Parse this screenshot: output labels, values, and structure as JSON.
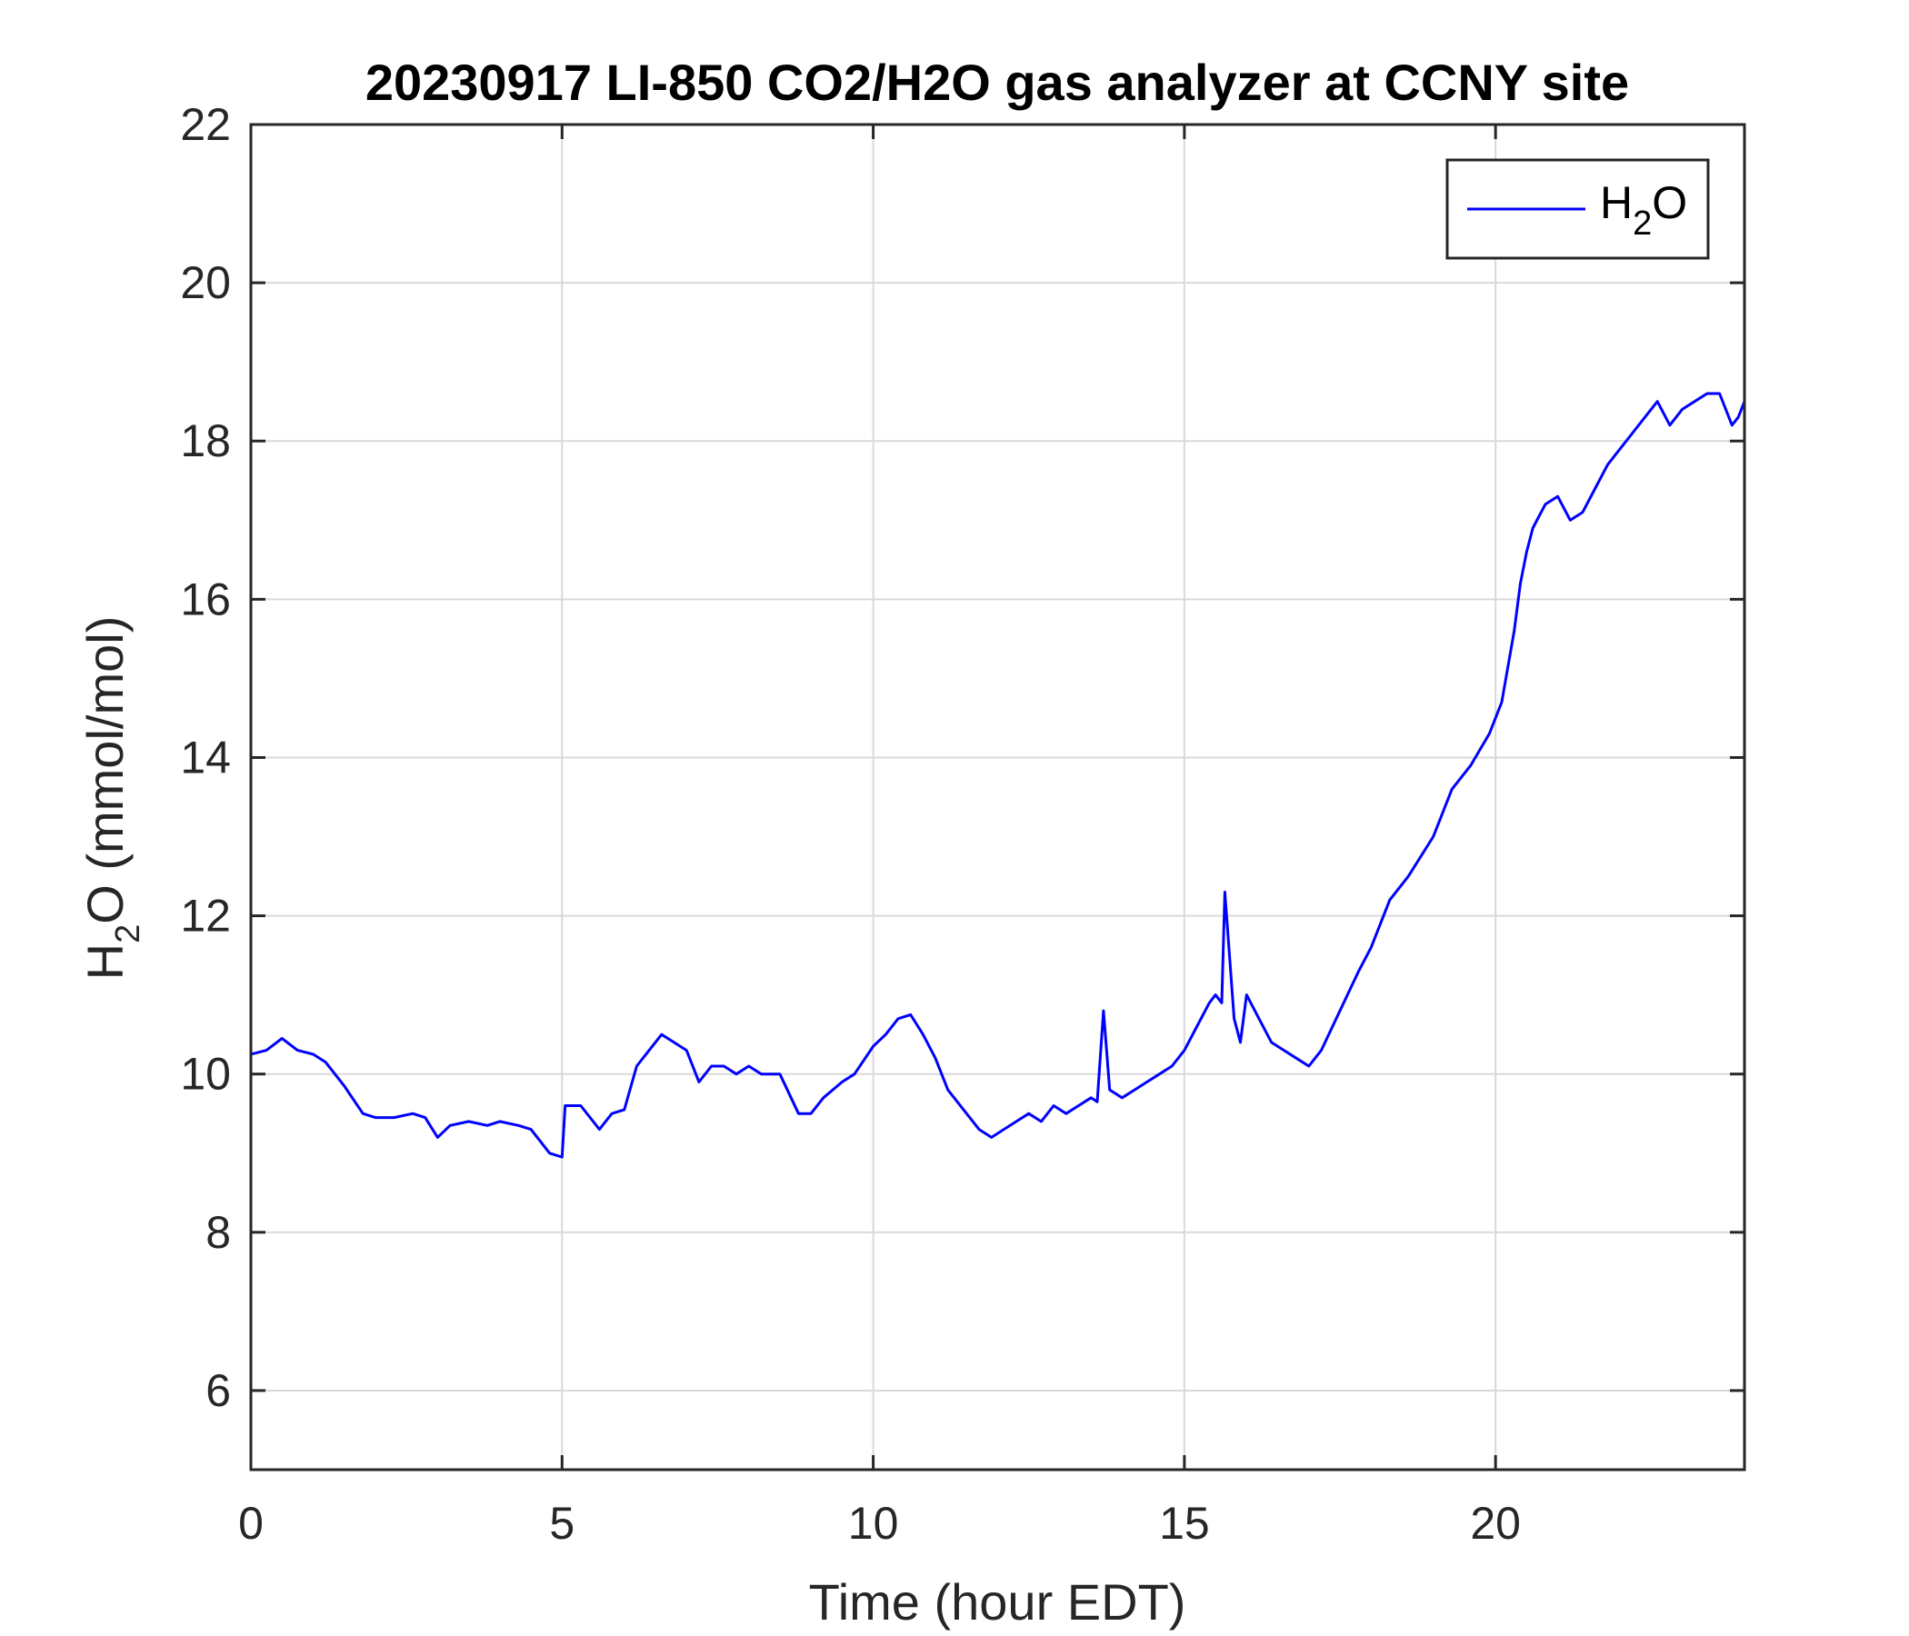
{
  "chart_data": {
    "type": "line",
    "title": "20230917 LI-850 CO2/H2O gas analyzer at CCNY site",
    "xlabel": "Time (hour EDT)",
    "ylabel": {
      "main": "H",
      "sub": "2",
      "rest": "O (mmol/mol)"
    },
    "xlim": [
      0,
      24
    ],
    "ylim": [
      5,
      22
    ],
    "xticks": [
      0,
      5,
      10,
      15,
      20
    ],
    "yticks": [
      6,
      8,
      10,
      12,
      14,
      16,
      18,
      20,
      22
    ],
    "grid": true,
    "legend_position": "top-right",
    "colors": {
      "series": "#0000ff",
      "grid": "#d9d9d9",
      "axis": "#262626"
    },
    "series": [
      {
        "name": {
          "main": "H",
          "sub": "2",
          "rest": "O"
        },
        "x": [
          0,
          0.25,
          0.5,
          0.75,
          1.0,
          1.2,
          1.5,
          1.8,
          2.0,
          2.3,
          2.6,
          2.8,
          3.0,
          3.2,
          3.5,
          3.8,
          4.0,
          4.3,
          4.5,
          4.8,
          5.0,
          5.05,
          5.3,
          5.6,
          5.8,
          6.0,
          6.2,
          6.4,
          6.6,
          6.8,
          7.0,
          7.2,
          7.4,
          7.6,
          7.8,
          8.0,
          8.2,
          8.5,
          8.8,
          9.0,
          9.2,
          9.5,
          9.7,
          10.0,
          10.2,
          10.4,
          10.6,
          10.8,
          11.0,
          11.2,
          11.5,
          11.7,
          11.9,
          12.1,
          12.3,
          12.5,
          12.7,
          12.9,
          13.1,
          13.3,
          13.5,
          13.6,
          13.7,
          13.8,
          14.0,
          14.2,
          14.4,
          14.6,
          14.8,
          15.0,
          15.2,
          15.4,
          15.5,
          15.6,
          15.65,
          15.8,
          15.9,
          16.0,
          16.2,
          16.4,
          16.6,
          16.8,
          17.0,
          17.2,
          17.5,
          17.8,
          18.0,
          18.3,
          18.6,
          19.0,
          19.3,
          19.6,
          19.9,
          20.1,
          20.3,
          20.4,
          20.5,
          20.6,
          20.8,
          21.0,
          21.2,
          21.4,
          21.6,
          21.8,
          22.0,
          22.2,
          22.4,
          22.6,
          22.8,
          23.0,
          23.2,
          23.4,
          23.6,
          23.8,
          23.9,
          24.0
        ],
        "values": [
          10.25,
          10.3,
          10.45,
          10.3,
          10.25,
          10.15,
          9.85,
          9.5,
          9.45,
          9.45,
          9.5,
          9.45,
          9.2,
          9.35,
          9.4,
          9.35,
          9.4,
          9.35,
          9.3,
          9.0,
          8.95,
          9.6,
          9.6,
          9.3,
          9.5,
          9.55,
          10.1,
          10.3,
          10.5,
          10.4,
          10.3,
          9.9,
          10.1,
          10.1,
          10.0,
          10.1,
          10.0,
          10.0,
          9.5,
          9.5,
          9.7,
          9.9,
          10.0,
          10.35,
          10.5,
          10.7,
          10.75,
          10.5,
          10.2,
          9.8,
          9.5,
          9.3,
          9.2,
          9.3,
          9.4,
          9.5,
          9.4,
          9.6,
          9.5,
          9.6,
          9.7,
          9.65,
          10.8,
          9.8,
          9.7,
          9.8,
          9.9,
          10.0,
          10.1,
          10.3,
          10.6,
          10.9,
          11.0,
          10.9,
          12.3,
          10.7,
          10.4,
          11.0,
          10.7,
          10.4,
          10.3,
          10.2,
          10.1,
          10.3,
          10.8,
          11.3,
          11.6,
          12.2,
          12.5,
          13.0,
          13.6,
          13.9,
          14.3,
          14.7,
          15.6,
          16.2,
          16.6,
          16.9,
          17.2,
          17.3,
          17.0,
          17.1,
          17.4,
          17.7,
          17.9,
          18.1,
          18.3,
          18.5,
          18.2,
          18.4,
          18.5,
          18.6,
          18.6,
          18.2,
          18.3,
          18.5
        ]
      }
    ]
  }
}
